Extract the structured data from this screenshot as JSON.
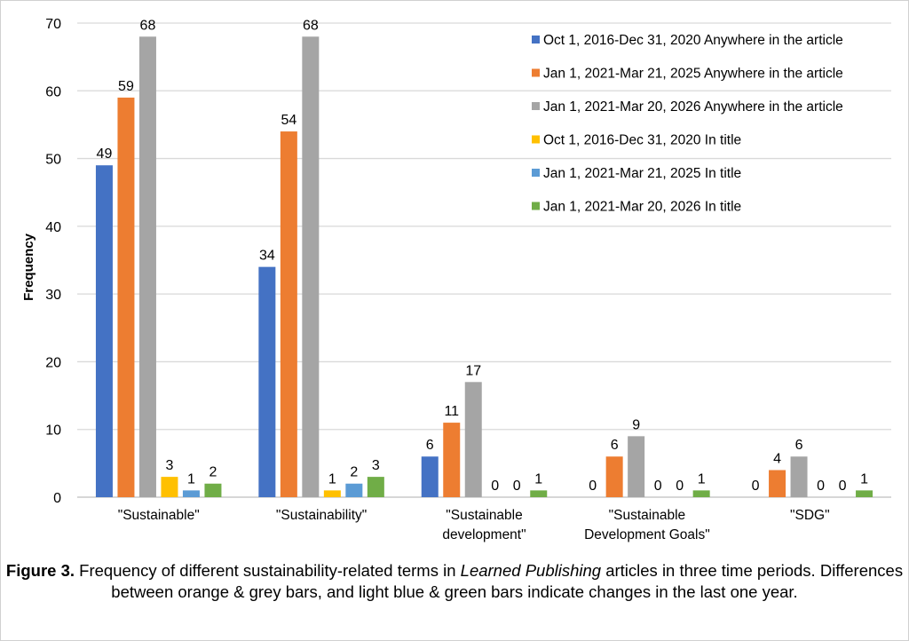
{
  "chart_data": {
    "type": "bar",
    "ylabel": "Frequency",
    "xlabel": "",
    "ylim": [
      0,
      70
    ],
    "yticks": [
      0,
      10,
      20,
      30,
      40,
      50,
      60,
      70
    ],
    "grid": true,
    "legend_position": "top-right",
    "categories": [
      [
        "\"Sustainable\""
      ],
      [
        "\"Sustainability\""
      ],
      [
        "\"Sustainable",
        "development\""
      ],
      [
        "\"Sustainable",
        "Development Goals\""
      ],
      [
        "\"SDG\""
      ]
    ],
    "series": [
      {
        "name": "Oct 1, 2016-Dec 31, 2020 Anywhere in the article",
        "color": "#4472C4",
        "values": [
          49,
          34,
          6,
          0,
          0
        ]
      },
      {
        "name": "Jan 1, 2021-Mar 21, 2025 Anywhere in the article",
        "color": "#ED7D31",
        "values": [
          59,
          54,
          11,
          6,
          4
        ]
      },
      {
        "name": "Jan 1, 2021-Mar 20, 2026 Anywhere in the article",
        "color": "#A5A5A5",
        "values": [
          68,
          68,
          17,
          9,
          6
        ]
      },
      {
        "name": "Oct 1, 2016-Dec 31, 2020 In title",
        "color": "#FFC000",
        "values": [
          3,
          1,
          0,
          0,
          0
        ]
      },
      {
        "name": "Jan 1, 2021-Mar 21, 2025 In title",
        "color": "#5B9BD5",
        "values": [
          1,
          2,
          0,
          0,
          0
        ]
      },
      {
        "name": "Jan 1, 2021-Mar 20, 2026 In title",
        "color": "#70AD47",
        "values": [
          2,
          3,
          1,
          1,
          1
        ]
      }
    ]
  },
  "caption": {
    "label": "Figure 3.",
    "text_before": " Frequency of different sustainability-related terms in ",
    "journal": "Learned Publishing",
    "text_after": " articles in three time periods. Differences between orange & grey bars, and light blue & green bars indicate changes in the last one year."
  }
}
